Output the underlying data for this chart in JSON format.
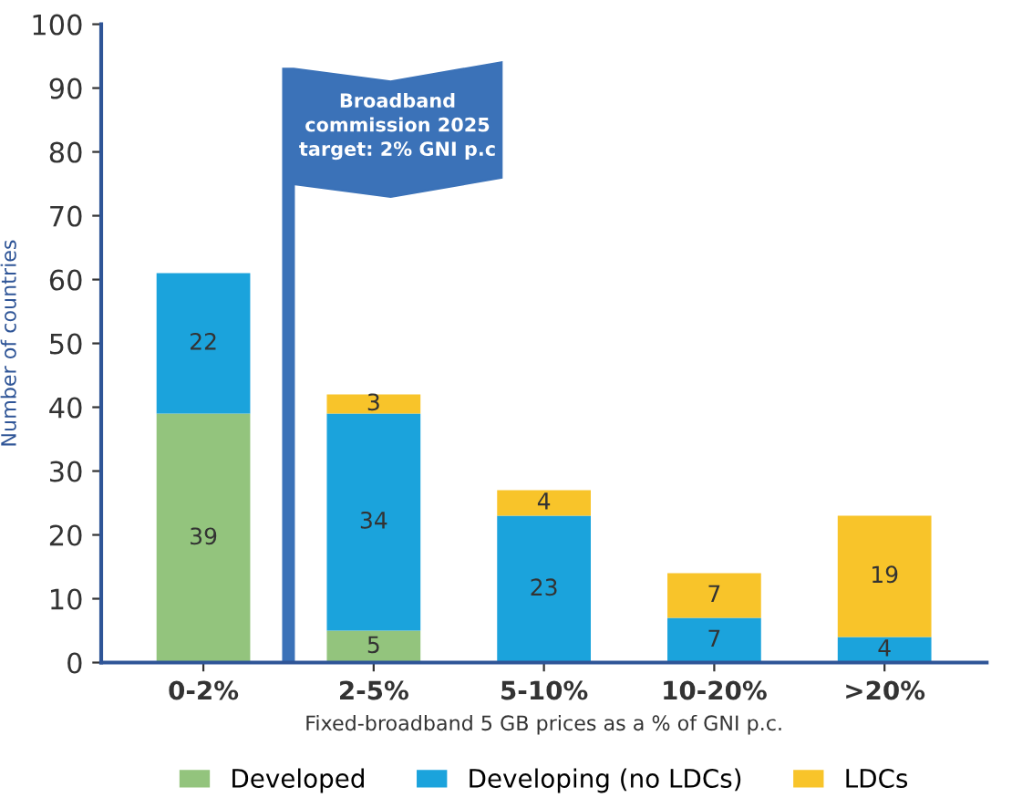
{
  "chart_data": {
    "type": "bar",
    "stacked": true,
    "xlabel": "Fixed-broadband 5 GB prices as a % of GNI p.c.",
    "ylabel": "Number of countries",
    "categories": [
      "0-2%",
      "2-5%",
      "5-10%",
      "10-20%",
      ">20%"
    ],
    "series": [
      {
        "name": "Developed",
        "color": "#93c47d",
        "values": [
          39,
          5,
          null,
          null,
          null
        ],
        "value_labels": [
          "39",
          "5",
          null,
          null,
          null
        ]
      },
      {
        "name": "Developing (no LDCs)",
        "color": "#1ba3dc",
        "values": [
          22,
          34,
          23,
          7,
          4
        ],
        "value_labels": [
          "22",
          "34",
          "23",
          "7",
          "4"
        ]
      },
      {
        "name": "LDCs",
        "color": "#f8c42a",
        "values": [
          null,
          3,
          4,
          7,
          19
        ],
        "value_labels": [
          null,
          "3",
          "4",
          "7",
          "19"
        ]
      }
    ],
    "ylim": [
      0,
      100
    ],
    "yticks": [
      0,
      10,
      20,
      30,
      40,
      50,
      60,
      70,
      80,
      90,
      100
    ],
    "grid": false,
    "legend": "bottom",
    "annotations": [
      "Broadband\ncommission 2025\ntarget: 2% GNI p.c"
    ]
  }
}
